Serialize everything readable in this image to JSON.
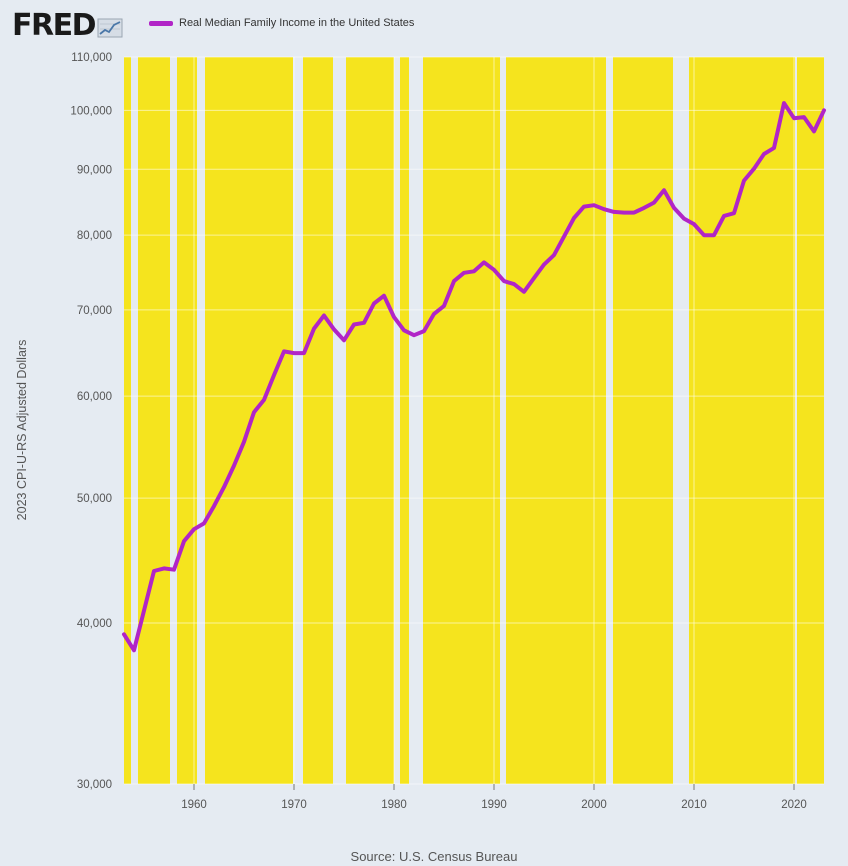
{
  "header": {
    "logo_text": "FRED",
    "logo_icon": "line-chart-icon",
    "legend_label": "Real Median Family Income in the United States"
  },
  "colors": {
    "background": "#e5ebf2",
    "recession_fill": "#f5e41e",
    "series_line": "#b125c7",
    "grid": "#ffffff"
  },
  "chart_data": {
    "type": "line",
    "title": "",
    "xlabel": "",
    "ylabel": "2023 CPI-U-RS Adjusted Dollars",
    "yscale": "log",
    "ylim": [
      30000,
      110000
    ],
    "xlim": [
      1953,
      2023
    ],
    "y_ticks": [
      "30,000",
      "40,000",
      "50,000",
      "60,000",
      "70,000",
      "80,000",
      "90,000",
      "100,000",
      "110,000"
    ],
    "y_tick_values": [
      30000,
      40000,
      50000,
      60000,
      70000,
      80000,
      90000,
      100000,
      110000
    ],
    "x_ticks": [
      "1960",
      "1970",
      "1980",
      "1990",
      "2000",
      "2010",
      "2020"
    ],
    "x_tick_values": [
      1960,
      1970,
      1980,
      1990,
      2000,
      2010,
      2020
    ],
    "grid": true,
    "legend": "top-left",
    "shaded_periods": [
      [
        1953.7,
        1954.4
      ],
      [
        1957.6,
        1958.3
      ],
      [
        1960.3,
        1961.1
      ],
      [
        1969.9,
        1970.9
      ],
      [
        1973.9,
        1975.2
      ],
      [
        1980.0,
        1980.6
      ],
      [
        1981.5,
        1982.9
      ],
      [
        1990.6,
        1991.2
      ],
      [
        2001.2,
        2001.9
      ],
      [
        2007.9,
        2009.5
      ],
      [
        2020.1,
        2020.3
      ]
    ],
    "series": [
      {
        "name": "Real Median Family Income in the United States",
        "x": [
          1953,
          1954,
          1955,
          1956,
          1957,
          1958,
          1959,
          1960,
          1961,
          1962,
          1963,
          1964,
          1965,
          1966,
          1967,
          1968,
          1969,
          1970,
          1971,
          1972,
          1973,
          1974,
          1975,
          1976,
          1977,
          1978,
          1979,
          1980,
          1981,
          1982,
          1983,
          1984,
          1985,
          1986,
          1987,
          1988,
          1989,
          1990,
          1991,
          1992,
          1993,
          1994,
          1995,
          1996,
          1997,
          1998,
          1999,
          2000,
          2001,
          2002,
          2003,
          2004,
          2005,
          2006,
          2007,
          2008,
          2009,
          2010,
          2011,
          2012,
          2013,
          2014,
          2015,
          2016,
          2017,
          2018,
          2019,
          2020,
          2021,
          2022,
          2023
        ],
        "values": [
          39200,
          38100,
          40900,
          43900,
          44100,
          44000,
          46300,
          47300,
          47800,
          49300,
          51000,
          53000,
          55300,
          58300,
          59600,
          62300,
          65000,
          64800,
          64800,
          67700,
          69300,
          67600,
          66300,
          68200,
          68400,
          70800,
          71800,
          69100,
          67500,
          66900,
          67400,
          69500,
          70500,
          73700,
          74800,
          75000,
          76200,
          75200,
          73700,
          73300,
          72300,
          74100,
          75900,
          77200,
          79800,
          82500,
          84200,
          84400,
          83800,
          83400,
          83300,
          83300,
          84000,
          84800,
          86700,
          84000,
          82400,
          81600,
          80000,
          80000,
          82800,
          83200,
          88200,
          90100,
          92500,
          93500,
          101300,
          98600,
          98800,
          96300,
          100000
        ]
      }
    ]
  },
  "source": "Source: U.S. Census Bureau"
}
